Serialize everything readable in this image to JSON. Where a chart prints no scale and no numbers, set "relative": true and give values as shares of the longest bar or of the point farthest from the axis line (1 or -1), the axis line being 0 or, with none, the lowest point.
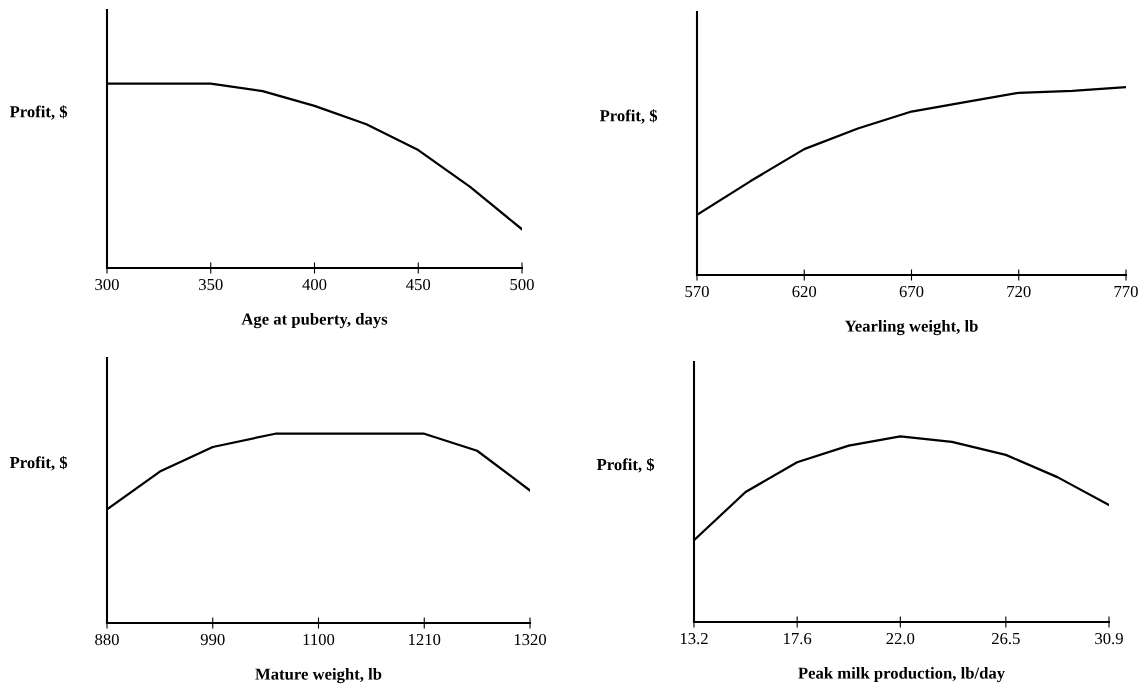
{
  "chart_data": [
    {
      "type": "line",
      "ylabel": "Profit, $",
      "xlabel": "Age at puberty, days",
      "relative": true,
      "color": "#000000",
      "x": [
        300,
        350,
        375,
        400,
        425,
        450,
        475,
        500
      ],
      "values": [
        1,
        1,
        0.96,
        0.88,
        0.78,
        0.64,
        0.44,
        0.21
      ],
      "xlim": [
        300,
        500
      ],
      "xticks": [
        300,
        350,
        400,
        450,
        500
      ]
    },
    {
      "type": "line",
      "ylabel": "Profit, $",
      "xlabel": "Yearling weight, lb",
      "relative": true,
      "color": "#000000",
      "x": [
        570,
        595,
        620,
        645,
        670,
        695,
        720,
        745,
        770
      ],
      "values": [
        0.32,
        0.5,
        0.67,
        0.78,
        0.87,
        0.92,
        0.97,
        0.98,
        1
      ],
      "xlim": [
        570,
        770
      ],
      "xticks": [
        570,
        620,
        670,
        720,
        770
      ]
    },
    {
      "type": "line",
      "ylabel": "Profit, $",
      "xlabel": "Mature weight, lb",
      "relative": true,
      "color": "#000000",
      "x": [
        880,
        935,
        990,
        1055,
        1100,
        1210,
        1265,
        1320
      ],
      "values": [
        0.6,
        0.8,
        0.93,
        1,
        1,
        1,
        0.91,
        0.7
      ],
      "xlim": [
        880,
        1320
      ],
      "xticks": [
        880,
        990,
        1100,
        1210,
        1320
      ]
    },
    {
      "type": "line",
      "ylabel": "Profit, $",
      "xlabel": "Peak milk production, lb/day",
      "relative": true,
      "color": "#000000",
      "x": [
        13.2,
        15.4,
        17.6,
        19.8,
        22.0,
        24.2,
        26.5,
        28.7,
        30.9
      ],
      "values": [
        0.44,
        0.7,
        0.86,
        0.95,
        1,
        0.97,
        0.9,
        0.78,
        0.63
      ],
      "xlim": [
        13.2,
        30.9
      ],
      "xticks": [
        13.2,
        17.6,
        {
          "value": 22.0,
          "label": "22.0"
        },
        26.5,
        30.9
      ]
    }
  ]
}
